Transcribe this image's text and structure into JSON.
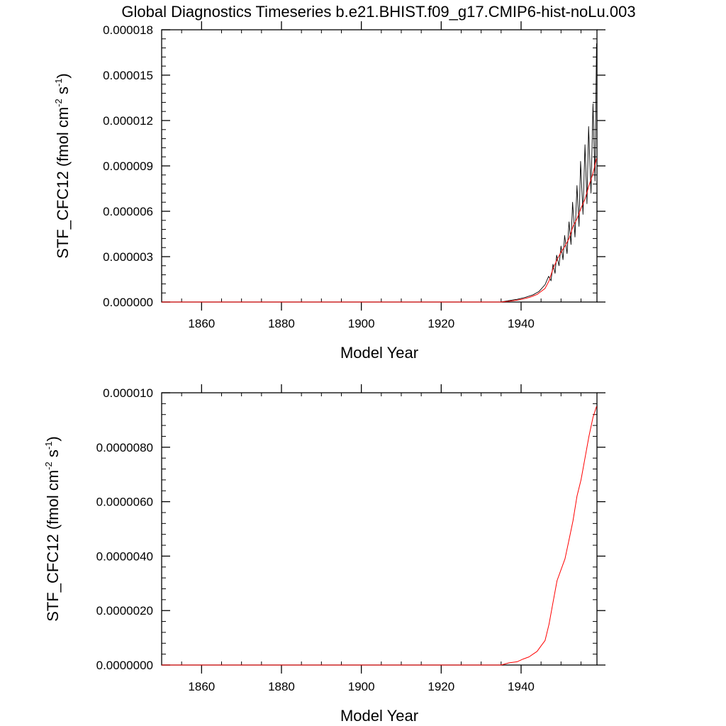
{
  "figure": {
    "title": "Global Diagnostics Timeseries b.e21.BHIST.f09_g17.CMIP6-hist-noLu.003"
  },
  "colors": {
    "monthly_series": "#000000",
    "annual_series": "#ff0000",
    "axis": "#000000",
    "background": "#ffffff"
  },
  "chart_data": [
    {
      "type": "line",
      "title": "Global Diagnostics Timeseries b.e21.BHIST.f09_g17.CMIP6-hist-noLu.003",
      "xlabel": "Model Year",
      "ylabel": {
        "main": "STF_CFC12 (fmol cm",
        "exp1": "-2",
        "mid": " s",
        "exp2": "-1",
        "close": ")"
      },
      "xlim": [
        1850,
        1959
      ],
      "ylim": [
        0,
        1.8e-05
      ],
      "xticks": [
        1860,
        1880,
        1900,
        1920,
        1940
      ],
      "xtick_labels": [
        "1860",
        "1880",
        "1900",
        "1920",
        "1940"
      ],
      "yticks": [
        0,
        3e-06,
        6e-06,
        9e-06,
        1.2e-05,
        1.5e-05,
        1.8e-05
      ],
      "ytick_labels": [
        "0.000000",
        "0.000003",
        "0.000006",
        "0.000009",
        "0.000012",
        "0.000015",
        "0.000018"
      ],
      "grid": false,
      "series": [
        {
          "style": "monthly",
          "color": "#000000",
          "x": [
            1850,
            1935.0,
            1937.0,
            1939.0,
            1941.0,
            1943.0,
            1944.5,
            1946.0,
            1946.9,
            1947.5,
            1948.0,
            1948.5,
            1948.9,
            1949.5,
            1950.0,
            1950.5,
            1950.9,
            1951.5,
            1952.0,
            1952.5,
            1952.9,
            1953.5,
            1954.0,
            1954.5,
            1954.9,
            1955.5,
            1956.0,
            1956.5,
            1956.9,
            1957.5,
            1958.0,
            1958.5,
            1958.9
          ],
          "y": [
            0,
            0,
            1e-07,
            1.8e-07,
            3e-07,
            4.8e-07,
            7e-07,
            1.15e-06,
            1.7e-06,
            1.4e-06,
            2.5e-06,
            1.9e-06,
            3.1e-06,
            2.4e-06,
            3.7e-06,
            2.8e-06,
            4.4e-06,
            3.2e-06,
            5.3e-06,
            3.8e-06,
            6.6e-06,
            4.3e-06,
            7.7e-06,
            5e-06,
            9.3e-06,
            5.8e-06,
            1.04e-05,
            6.5e-06,
            1.16e-05,
            7.2e-06,
            1.31e-05,
            8e-06,
            1.71e-05
          ]
        },
        {
          "style": "annual",
          "color": "#ff0000",
          "x": [
            1850,
            1935.0,
            1937.0,
            1939.0,
            1940.5,
            1942.0,
            1943.0,
            1944.0,
            1945.0,
            1946.0,
            1947.0,
            1948.0,
            1949.0,
            1950.0,
            1951.0,
            1952.0,
            1953.0,
            1954.0,
            1955.0,
            1956.0,
            1957.0,
            1958.0,
            1958.9
          ],
          "y": [
            0,
            0,
            5e-08,
            1.2e-07,
            2e-07,
            3e-07,
            4e-07,
            5e-07,
            7e-07,
            9e-07,
            1.4e-06,
            2.2e-06,
            2.8e-06,
            3.3e-06,
            3.7e-06,
            4.2e-06,
            5e-06,
            5.5e-06,
            6.2e-06,
            6.8e-06,
            7.7e-06,
            8.5e-06,
            9.5e-06
          ]
        }
      ]
    },
    {
      "type": "line",
      "title": "",
      "xlabel": "Model Year",
      "ylabel": {
        "main": "STF_CFC12 (fmol cm",
        "exp1": "-2",
        "mid": " s",
        "exp2": "-1",
        "close": ")"
      },
      "xlim": [
        1850,
        1959
      ],
      "ylim": [
        0,
        1e-05
      ],
      "xticks": [
        1860,
        1880,
        1900,
        1920,
        1940
      ],
      "xtick_labels": [
        "1860",
        "1880",
        "1900",
        "1920",
        "1940"
      ],
      "yticks": [
        0,
        2e-06,
        4e-06,
        6e-06,
        8e-06,
        1e-05
      ],
      "ytick_labels": [
        "0.0000000",
        "0.0000020",
        "0.0000040",
        "0.0000060",
        "0.0000080",
        "0.000010"
      ],
      "grid": false,
      "series": [
        {
          "style": "annual",
          "color": "#ff0000",
          "x": [
            1850,
            1935.0,
            1937.0,
            1939.0,
            1940.5,
            1942.0,
            1943.0,
            1944.0,
            1945.0,
            1946.0,
            1947.0,
            1948.0,
            1949.0,
            1950.0,
            1951.0,
            1952.0,
            1953.0,
            1954.0,
            1955.0,
            1956.0,
            1957.0,
            1958.0,
            1958.9
          ],
          "y": [
            0,
            0,
            8e-08,
            1.2e-07,
            2.2e-07,
            3e-07,
            4e-07,
            5e-07,
            7e-07,
            9e-07,
            1.5e-06,
            2.3e-06,
            3.1e-06,
            3.5e-06,
            3.9e-06,
            4.6e-06,
            5.3e-06,
            6.2e-06,
            6.8e-06,
            7.6e-06,
            8.4e-06,
            9.1e-06,
            9.5e-06
          ]
        }
      ]
    }
  ]
}
